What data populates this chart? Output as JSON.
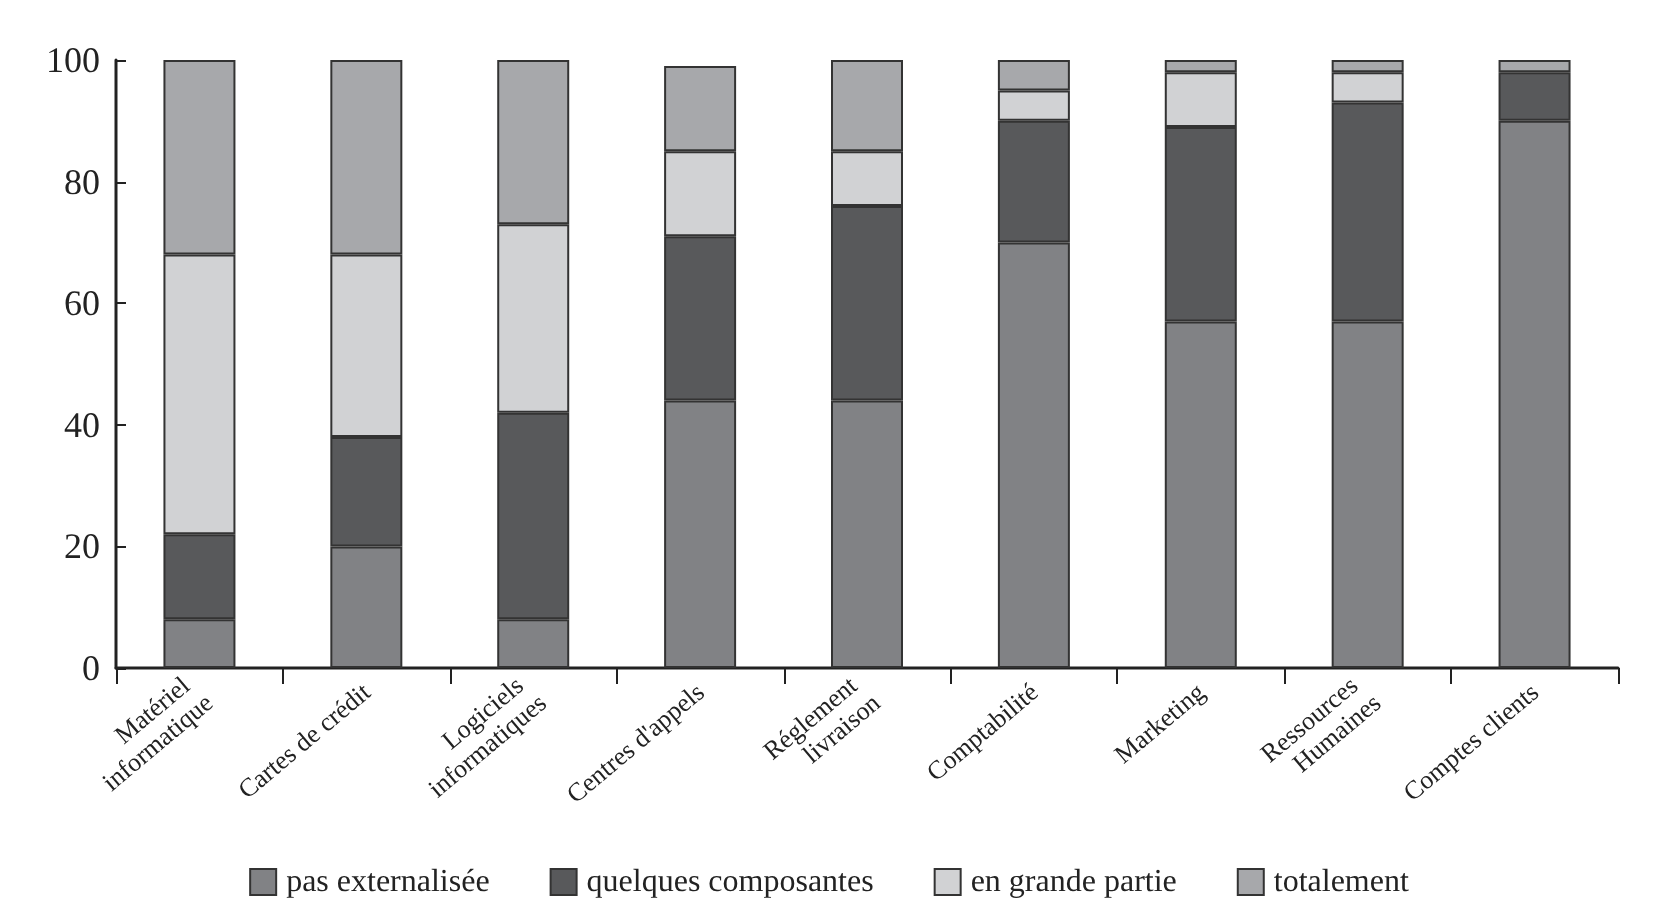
{
  "chart_data": {
    "type": "bar",
    "stacked": true,
    "categories": [
      "Matériel informatique",
      "Cartes de crédit",
      "Logiciels informatiques",
      "Centres d'appels",
      "Réglement livraison",
      "Comptabilité",
      "Marketing",
      "Ressources Humaines",
      "Comptes clients"
    ],
    "series": [
      {
        "name": "pas externalisée",
        "color": "#818285",
        "values": [
          8,
          20,
          8,
          44,
          44,
          70,
          57,
          57,
          90
        ]
      },
      {
        "name": "quelques composantes",
        "color": "#58595b",
        "values": [
          14,
          18,
          34,
          27,
          32,
          20,
          32,
          36,
          8
        ]
      },
      {
        "name": "en grande partie",
        "color": "#d1d2d4",
        "values": [
          46,
          30,
          31,
          14,
          9,
          5,
          9,
          5,
          null
        ]
      },
      {
        "name": "totalement",
        "color": "#a7a8ab",
        "values": [
          32,
          32,
          27,
          14,
          15,
          5,
          2,
          2,
          2
        ]
      }
    ],
    "ylim": [
      0,
      100
    ],
    "yticks": [
      0,
      20,
      40,
      60,
      80,
      100
    ],
    "grid": false,
    "legend": "bottom"
  }
}
